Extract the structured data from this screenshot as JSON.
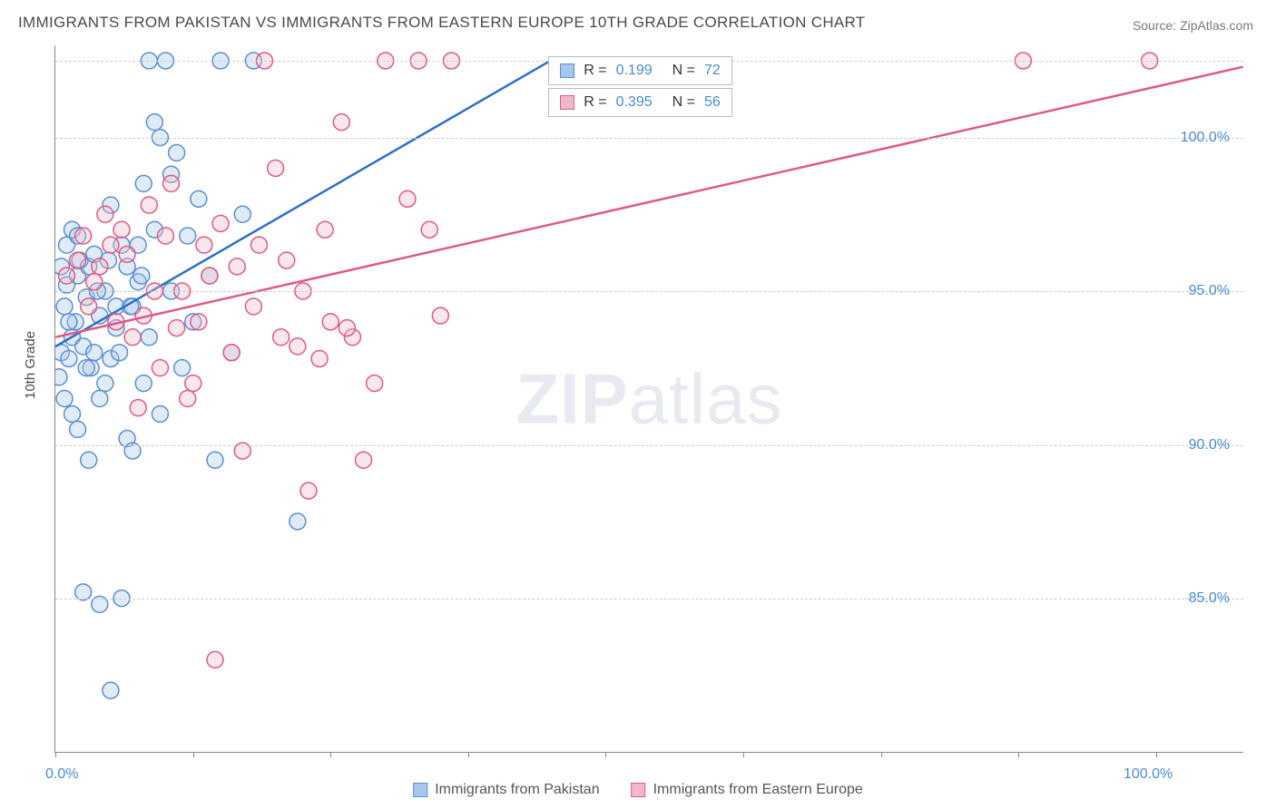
{
  "title": "IMMIGRANTS FROM PAKISTAN VS IMMIGRANTS FROM EASTERN EUROPE 10TH GRADE CORRELATION CHART",
  "source_prefix": "Source: ",
  "source": "ZipAtlas.com",
  "watermark_a": "ZIP",
  "watermark_b": "atlas",
  "chart": {
    "type": "scatter+regression",
    "ylabel": "10th Grade",
    "xlim": [
      0,
      108
    ],
    "ylim": [
      80,
      103
    ],
    "x_ticks_pos": [
      0,
      12.5,
      25,
      37.5,
      50,
      62.5,
      75,
      87.5,
      100
    ],
    "x_tick_labels": [
      {
        "pos": 0,
        "label": "0.0%"
      },
      {
        "pos": 100,
        "label": "100.0%"
      }
    ],
    "y_gridlines": [
      85,
      90,
      95,
      100,
      102.5
    ],
    "y_tick_labels": [
      {
        "pos": 85,
        "label": "85.0%"
      },
      {
        "pos": 90,
        "label": "90.0%"
      },
      {
        "pos": 95,
        "label": "95.0%"
      },
      {
        "pos": 100,
        "label": "100.0%"
      }
    ],
    "background_color": "#ffffff",
    "grid_color": "#cccccc",
    "axis_color": "#888888",
    "point_radius": 9,
    "point_stroke_width": 1.5,
    "point_fill_opacity": 0.35,
    "series": [
      {
        "id": "pakistan",
        "label": "Immigrants from Pakistan",
        "color_fill": "#a7c7ec",
        "color_stroke": "#5a8fd0",
        "line_color": "#2d6fc9",
        "line_width": 2.5,
        "R": "0.199",
        "N": "72",
        "regression": {
          "x1": 0,
          "y1": 93.2,
          "x2": 45,
          "y2": 102.5
        },
        "points": [
          [
            0.5,
            93.0
          ],
          [
            0.8,
            94.5
          ],
          [
            1.0,
            95.2
          ],
          [
            1.2,
            92.8
          ],
          [
            1.5,
            93.5
          ],
          [
            1.8,
            94.0
          ],
          [
            2.0,
            95.5
          ],
          [
            2.2,
            96.0
          ],
          [
            2.5,
            93.2
          ],
          [
            2.8,
            94.8
          ],
          [
            3.0,
            95.8
          ],
          [
            3.2,
            92.5
          ],
          [
            3.5,
            96.2
          ],
          [
            4.0,
            94.2
          ],
          [
            4.5,
            95.0
          ],
          [
            5.0,
            97.8
          ],
          [
            5.5,
            93.8
          ],
          [
            6.0,
            96.5
          ],
          [
            6.5,
            90.2
          ],
          [
            7.0,
            94.5
          ],
          [
            7.5,
            95.3
          ],
          [
            8.0,
            98.5
          ],
          [
            8.5,
            102.5
          ],
          [
            9.0,
            97.0
          ],
          [
            9.5,
            100.0
          ],
          [
            10.0,
            102.5
          ],
          [
            10.5,
            98.8
          ],
          [
            11.0,
            99.5
          ],
          [
            12.0,
            96.8
          ],
          [
            1.5,
            91.0
          ],
          [
            2.0,
            90.5
          ],
          [
            3.0,
            89.5
          ],
          [
            4.0,
            91.5
          ],
          [
            5.0,
            92.8
          ],
          [
            2.5,
            85.2
          ],
          [
            4.0,
            84.8
          ],
          [
            5.0,
            82.0
          ],
          [
            6.0,
            85.0
          ],
          [
            7.0,
            89.8
          ],
          [
            8.0,
            92.0
          ],
          [
            9.0,
            100.5
          ],
          [
            0.5,
            95.8
          ],
          [
            1.0,
            96.5
          ],
          [
            1.5,
            97.0
          ],
          [
            2.0,
            96.8
          ],
          [
            0.3,
            92.2
          ],
          [
            13.0,
            98.0
          ],
          [
            14.0,
            95.5
          ],
          [
            14.5,
            89.5
          ],
          [
            15.0,
            102.5
          ],
          [
            16.0,
            93.0
          ],
          [
            17.0,
            97.5
          ],
          [
            18.0,
            102.5
          ],
          [
            12.5,
            94.0
          ],
          [
            3.5,
            93.0
          ],
          [
            4.5,
            92.0
          ],
          [
            5.5,
            94.5
          ],
          [
            6.5,
            95.8
          ],
          [
            7.5,
            96.5
          ],
          [
            8.5,
            93.5
          ],
          [
            0.8,
            91.5
          ],
          [
            1.2,
            94.0
          ],
          [
            2.8,
            92.5
          ],
          [
            3.8,
            95.0
          ],
          [
            4.8,
            96.0
          ],
          [
            5.8,
            93.0
          ],
          [
            6.8,
            94.5
          ],
          [
            7.8,
            95.5
          ],
          [
            22.0,
            87.5
          ],
          [
            11.5,
            92.5
          ],
          [
            9.5,
            91.0
          ],
          [
            10.5,
            95.0
          ]
        ]
      },
      {
        "id": "eastern_europe",
        "label": "Immigrants from Eastern Europe",
        "color_fill": "#f0b9c8",
        "color_stroke": "#e05a84",
        "line_color": "#e05a84",
        "line_width": 2.5,
        "R": "0.395",
        "N": "56",
        "regression": {
          "x1": 0,
          "y1": 93.5,
          "x2": 108,
          "y2": 102.3
        },
        "points": [
          [
            1.0,
            95.5
          ],
          [
            2.0,
            96.0
          ],
          [
            3.0,
            94.5
          ],
          [
            4.0,
            95.8
          ],
          [
            5.0,
            96.5
          ],
          [
            6.0,
            97.0
          ],
          [
            7.0,
            93.5
          ],
          [
            8.0,
            94.2
          ],
          [
            9.0,
            95.0
          ],
          [
            10.0,
            96.8
          ],
          [
            11.0,
            93.8
          ],
          [
            12.0,
            91.5
          ],
          [
            13.0,
            94.0
          ],
          [
            14.0,
            95.5
          ],
          [
            15.0,
            97.2
          ],
          [
            16.0,
            93.0
          ],
          [
            17.0,
            89.8
          ],
          [
            18.0,
            94.5
          ],
          [
            19.0,
            102.5
          ],
          [
            20.0,
            99.0
          ],
          [
            21.0,
            96.0
          ],
          [
            22.0,
            93.2
          ],
          [
            23.0,
            88.5
          ],
          [
            24.0,
            92.8
          ],
          [
            25.0,
            94.0
          ],
          [
            26.0,
            100.5
          ],
          [
            27.0,
            93.5
          ],
          [
            28.0,
            89.5
          ],
          [
            29.0,
            92.0
          ],
          [
            30.0,
            102.5
          ],
          [
            32.0,
            98.0
          ],
          [
            33.0,
            102.5
          ],
          [
            34.0,
            97.0
          ],
          [
            35.0,
            94.2
          ],
          [
            36.0,
            102.5
          ],
          [
            2.5,
            96.8
          ],
          [
            4.5,
            97.5
          ],
          [
            6.5,
            96.2
          ],
          [
            8.5,
            97.8
          ],
          [
            10.5,
            98.5
          ],
          [
            12.5,
            92.0
          ],
          [
            14.5,
            83.0
          ],
          [
            7.5,
            91.2
          ],
          [
            9.5,
            92.5
          ],
          [
            11.5,
            95.0
          ],
          [
            13.5,
            96.5
          ],
          [
            88.0,
            102.5
          ],
          [
            99.5,
            102.5
          ],
          [
            3.5,
            95.3
          ],
          [
            5.5,
            94.0
          ],
          [
            16.5,
            95.8
          ],
          [
            18.5,
            96.5
          ],
          [
            20.5,
            93.5
          ],
          [
            22.5,
            95.0
          ],
          [
            24.5,
            97.0
          ],
          [
            26.5,
            93.8
          ]
        ]
      }
    ],
    "stat_boxes": [
      {
        "series": "pakistan",
        "left_pct": 41.5,
        "top_pct": 1.5,
        "R_label": "R =",
        "N_label": "N ="
      },
      {
        "series": "eastern_europe",
        "left_pct": 41.5,
        "top_pct": 6.0,
        "R_label": "R =",
        "N_label": "N ="
      }
    ]
  }
}
